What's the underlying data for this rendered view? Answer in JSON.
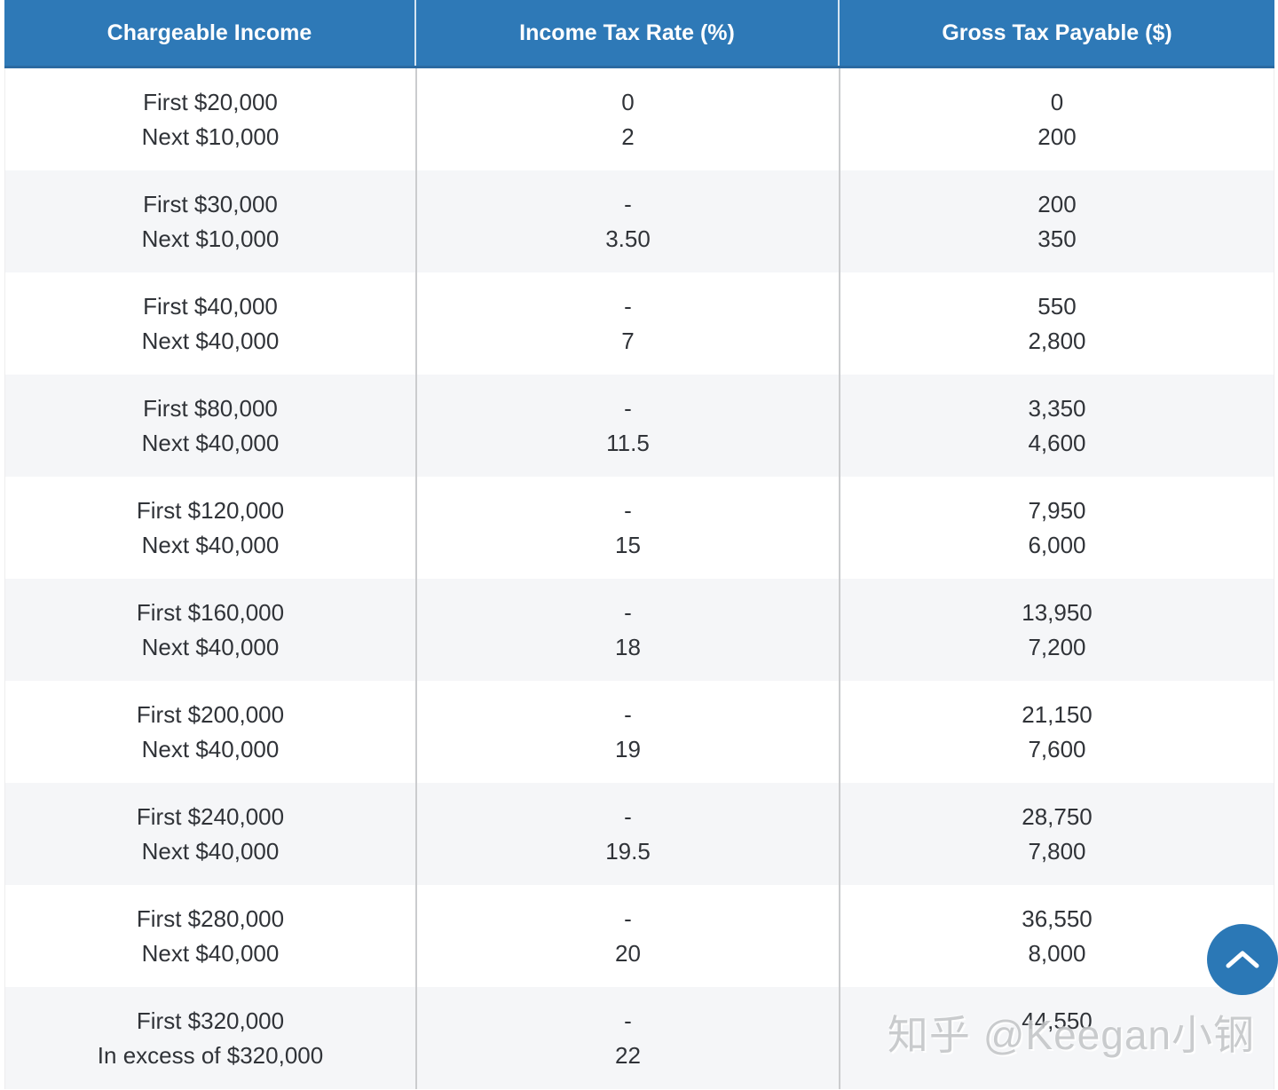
{
  "table": {
    "columns": [
      {
        "id": "chargeable_income",
        "label": "Chargeable Income"
      },
      {
        "id": "income_tax_rate",
        "label": "Income Tax Rate (%)"
      },
      {
        "id": "gross_tax_payable",
        "label": "Gross Tax Payable ($)"
      }
    ],
    "rows": [
      {
        "income": [
          "First $20,000",
          "Next $10,000"
        ],
        "rate": [
          "0",
          "2"
        ],
        "payable": [
          "0",
          "200"
        ]
      },
      {
        "income": [
          "First $30,000",
          "Next $10,000"
        ],
        "rate": [
          "-",
          "3.50"
        ],
        "payable": [
          "200",
          "350"
        ]
      },
      {
        "income": [
          "First $40,000",
          "Next $40,000"
        ],
        "rate": [
          "-",
          "7"
        ],
        "payable": [
          "550",
          "2,800"
        ]
      },
      {
        "income": [
          "First $80,000",
          "Next $40,000"
        ],
        "rate": [
          "-",
          "11.5"
        ],
        "payable": [
          "3,350",
          "4,600"
        ]
      },
      {
        "income": [
          "First $120,000",
          "Next $40,000"
        ],
        "rate": [
          "-",
          "15"
        ],
        "payable": [
          "7,950",
          "6,000"
        ]
      },
      {
        "income": [
          "First $160,000",
          "Next $40,000"
        ],
        "rate": [
          "-",
          "18"
        ],
        "payable": [
          "13,950",
          "7,200"
        ]
      },
      {
        "income": [
          "First $200,000",
          "Next $40,000"
        ],
        "rate": [
          "-",
          "19"
        ],
        "payable": [
          "21,150",
          "7,600"
        ]
      },
      {
        "income": [
          "First $240,000",
          "Next $40,000"
        ],
        "rate": [
          "-",
          "19.5"
        ],
        "payable": [
          "28,750",
          "7,800"
        ]
      },
      {
        "income": [
          "First $280,000",
          "Next $40,000"
        ],
        "rate": [
          "-",
          "20"
        ],
        "payable": [
          "36,550",
          "8,000"
        ]
      },
      {
        "income": [
          "First $320,000",
          "In excess of $320,000"
        ],
        "rate": [
          "-",
          "22"
        ],
        "payable": [
          "44,550",
          ""
        ]
      }
    ]
  },
  "watermark": {
    "text": "知乎 @Keegan小钢"
  },
  "back_to_top": {
    "icon": "chevron-up-icon"
  },
  "colors": {
    "header_bg": "#2e79b7",
    "header_border_bottom": "#2b6aa1",
    "header_text": "#ffffff",
    "row_bg": "#ffffff",
    "row_alt_bg": "#f5f6f8",
    "body_text": "#303338",
    "divider": "#cbccce",
    "button_bg": "#2b78b6",
    "watermark_text": "#c5c7c9"
  }
}
